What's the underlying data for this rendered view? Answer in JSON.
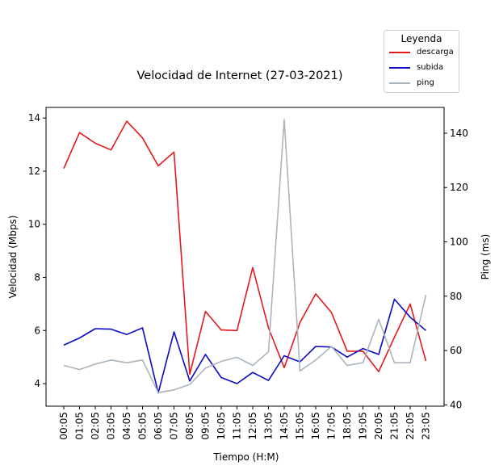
{
  "chart_data": {
    "type": "line",
    "title": "Velocidad de Internet (27-03-2021)",
    "xlabel": "Tiempo (H:M)",
    "ylabel_left": "Velocidad (Mbps)",
    "ylabel_right": "Ping (ms)",
    "legend_title": "Leyenda",
    "legend_position": "top-right",
    "categories": [
      "00:05",
      "01:05",
      "02:05",
      "03:05",
      "04:05",
      "05:05",
      "06:05",
      "07:05",
      "08:05",
      "09:05",
      "10:05",
      "11:05",
      "12:05",
      "13:05",
      "14:05",
      "15:05",
      "16:05",
      "17:05",
      "18:05",
      "19:05",
      "20:05",
      "21:05",
      "22:05",
      "23:05"
    ],
    "left_axis": {
      "min": 3.15,
      "max": 14.4,
      "ticks": [
        4,
        6,
        8,
        10,
        12,
        14
      ]
    },
    "right_axis": {
      "min": 39.5,
      "max": 149.5,
      "ticks": [
        40,
        60,
        80,
        100,
        120,
        140
      ]
    },
    "series": [
      {
        "name": "descarga",
        "axis": "left",
        "color": "#e31a1c",
        "values": [
          12.1,
          13.45,
          13.05,
          12.8,
          13.88,
          13.25,
          12.2,
          12.72,
          4.35,
          6.72,
          6.02,
          6.0,
          8.37,
          6.1,
          4.6,
          6.3,
          7.38,
          6.68,
          5.22,
          5.22,
          4.45,
          5.75,
          7.0,
          4.85
        ]
      },
      {
        "name": "subida",
        "axis": "left",
        "color": "#0a0ac8",
        "values": [
          5.45,
          5.72,
          6.07,
          6.05,
          5.85,
          6.1,
          3.65,
          5.95,
          4.1,
          5.1,
          4.23,
          4.0,
          4.42,
          4.12,
          5.05,
          4.82,
          5.4,
          5.38,
          5.0,
          5.32,
          5.1,
          7.18,
          6.5,
          6.0
        ]
      },
      {
        "name": "ping",
        "axis": "right",
        "color": "#aab4bc",
        "values": [
          54.5,
          53.0,
          55.0,
          56.5,
          55.5,
          56.5,
          44.5,
          45.5,
          47.5,
          53.5,
          56.0,
          57.5,
          54.5,
          59.5,
          145.0,
          52.5,
          56.5,
          61.5,
          54.5,
          55.5,
          71.5,
          55.5,
          55.5,
          80.5
        ]
      }
    ]
  }
}
